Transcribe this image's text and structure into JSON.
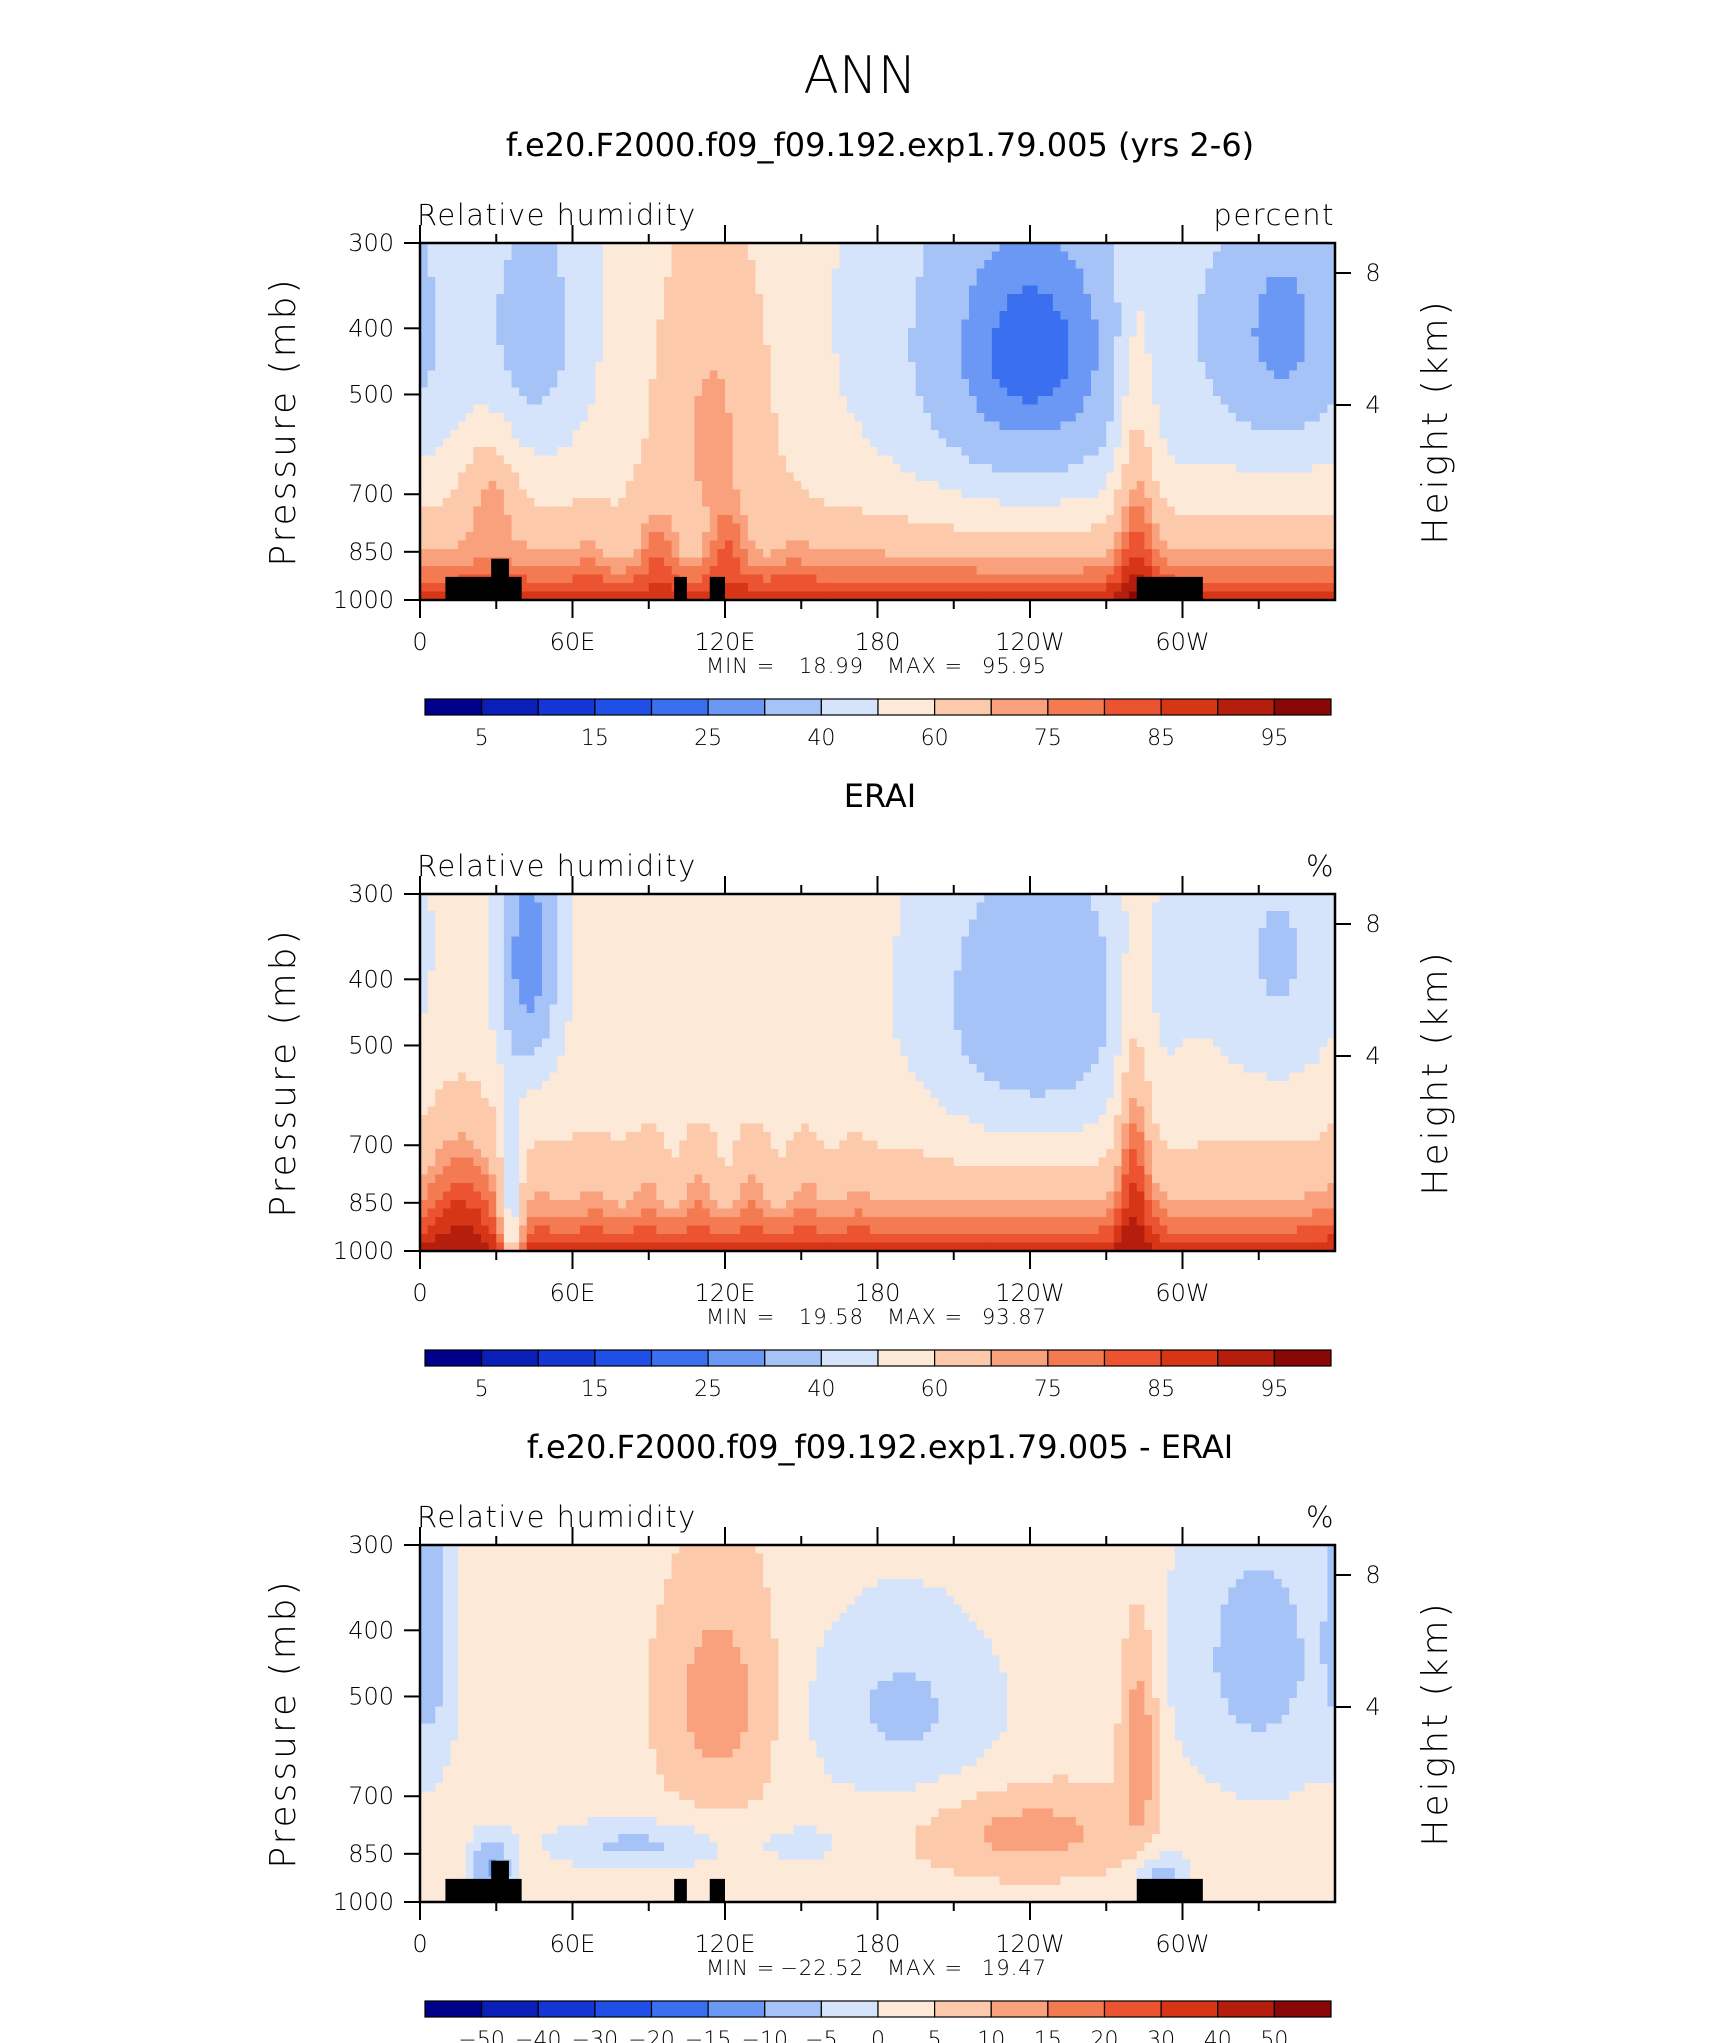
{
  "figure_title": "ANN",
  "colors": {
    "abs_scale": [
      "#00008a",
      "#0a1fb8",
      "#1436d4",
      "#1f4fe6",
      "#3a6ff0",
      "#6b98f5",
      "#a6c3f8",
      "#d5e4fb",
      "#fde9d8",
      "#fcc9ab",
      "#f9a07c",
      "#f47a52",
      "#ec5330",
      "#d63516",
      "#b51e0c",
      "#8a0707"
    ],
    "diff_scale": [
      "#00008a",
      "#0a1fb8",
      "#1436d4",
      "#1f4fe6",
      "#3a6ff0",
      "#6b98f5",
      "#a6c3f8",
      "#d5e4fb",
      "#fde9d8",
      "#fcc9ab",
      "#f9a07c",
      "#f47a52",
      "#ec5330",
      "#d63516",
      "#b51e0c",
      "#8a0707"
    ],
    "missing": "#000000"
  },
  "chart_data": [
    {
      "type": "heatmap",
      "title": "f.e20.F2000.f09_f09.192.exp1.79.005 (yrs 2-6)",
      "variable": "Relative humidity",
      "units": "percent",
      "xlabel": "",
      "ylabel": "Pressure (mb)",
      "ylabel_right": "Height (km)",
      "x_ticks": [
        "0",
        "60E",
        "120E",
        "180",
        "120W",
        "60W"
      ],
      "y_ticks": [
        "300",
        "400",
        "500",
        "700",
        "850",
        "1000"
      ],
      "y_ticks_right": [
        "8",
        "4"
      ],
      "ylim": [
        1000,
        300
      ],
      "min_label": "MIN =",
      "min_value": "18.99",
      "max_label": "MAX =",
      "max_value": "95.95",
      "colorbar_labels": [
        "5",
        "15",
        "25",
        "40",
        "60",
        "75",
        "85",
        "95"
      ],
      "profile": "model"
    },
    {
      "type": "heatmap",
      "title": "ERAI",
      "variable": "Relative humidity",
      "units": "%",
      "xlabel": "",
      "ylabel": "Pressure (mb)",
      "ylabel_right": "Height (km)",
      "x_ticks": [
        "0",
        "60E",
        "120E",
        "180",
        "120W",
        "60W"
      ],
      "y_ticks": [
        "300",
        "400",
        "500",
        "700",
        "850",
        "1000"
      ],
      "y_ticks_right": [
        "8",
        "4"
      ],
      "ylim": [
        1000,
        300
      ],
      "min_label": "MIN =",
      "min_value": "19.58",
      "max_label": "MAX =",
      "max_value": "93.87",
      "colorbar_labels": [
        "5",
        "15",
        "25",
        "40",
        "60",
        "75",
        "85",
        "95"
      ],
      "profile": "obs"
    },
    {
      "type": "heatmap",
      "title": "f.e20.F2000.f09_f09.192.exp1.79.005 - ERAI",
      "variable": "Relative humidity",
      "units": "%",
      "xlabel": "",
      "ylabel": "Pressure (mb)",
      "ylabel_right": "Height (km)",
      "x_ticks": [
        "0",
        "60E",
        "120E",
        "180",
        "120W",
        "60W"
      ],
      "y_ticks": [
        "300",
        "400",
        "500",
        "700",
        "850",
        "1000"
      ],
      "y_ticks_right": [
        "8",
        "4"
      ],
      "ylim": [
        1000,
        300
      ],
      "min_label": "MIN =",
      "min_value": "−22.52",
      "max_label": "MAX =",
      "max_value": "19.47",
      "colorbar_labels": [
        "−50",
        "−40",
        "−30",
        "−20",
        "−15",
        "−10",
        "−5",
        "0",
        "5",
        "10",
        "15",
        "20",
        "30",
        "40",
        "50"
      ],
      "profile": "diff"
    }
  ]
}
